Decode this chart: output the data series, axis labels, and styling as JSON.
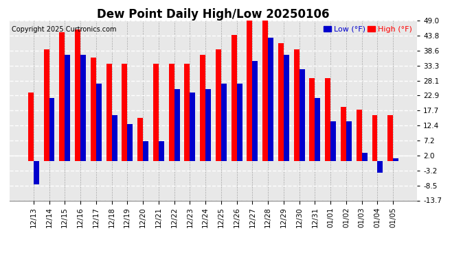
{
  "title": "Dew Point Daily High/Low 20250106",
  "copyright": "Copyright 2025 Curtronics.com",
  "legend_low": "Low (°F)",
  "legend_high": "High (°F)",
  "dates": [
    "12/13",
    "12/14",
    "12/15",
    "12/16",
    "12/17",
    "12/18",
    "12/19",
    "12/20",
    "12/21",
    "12/22",
    "12/23",
    "12/24",
    "12/25",
    "12/26",
    "12/27",
    "12/28",
    "12/29",
    "12/30",
    "12/31",
    "01/01",
    "01/02",
    "01/03",
    "01/04",
    "01/05"
  ],
  "high": [
    24,
    39,
    45,
    46,
    36,
    34,
    34,
    15,
    34,
    34,
    34,
    37,
    39,
    44,
    49,
    49,
    41,
    39,
    29,
    29,
    19,
    18,
    16,
    16
  ],
  "low": [
    -8,
    22,
    37,
    37,
    27,
    16,
    13,
    7,
    7,
    25,
    24,
    25,
    27,
    27,
    35,
    43,
    37,
    32,
    22,
    14,
    14,
    3,
    -4,
    1
  ],
  "ylim_min": -13.7,
  "ylim_max": 49.0,
  "yticks": [
    -13.7,
    -8.5,
    -3.2,
    2.0,
    7.2,
    12.4,
    17.7,
    22.9,
    28.1,
    33.3,
    38.6,
    43.8,
    49.0
  ],
  "bar_width": 0.35,
  "high_color": "#ff0000",
  "low_color": "#0000cc",
  "bg_color": "#ffffff",
  "grid_color": "#aaaaaa",
  "title_fontsize": 12,
  "tick_fontsize": 7.5
}
